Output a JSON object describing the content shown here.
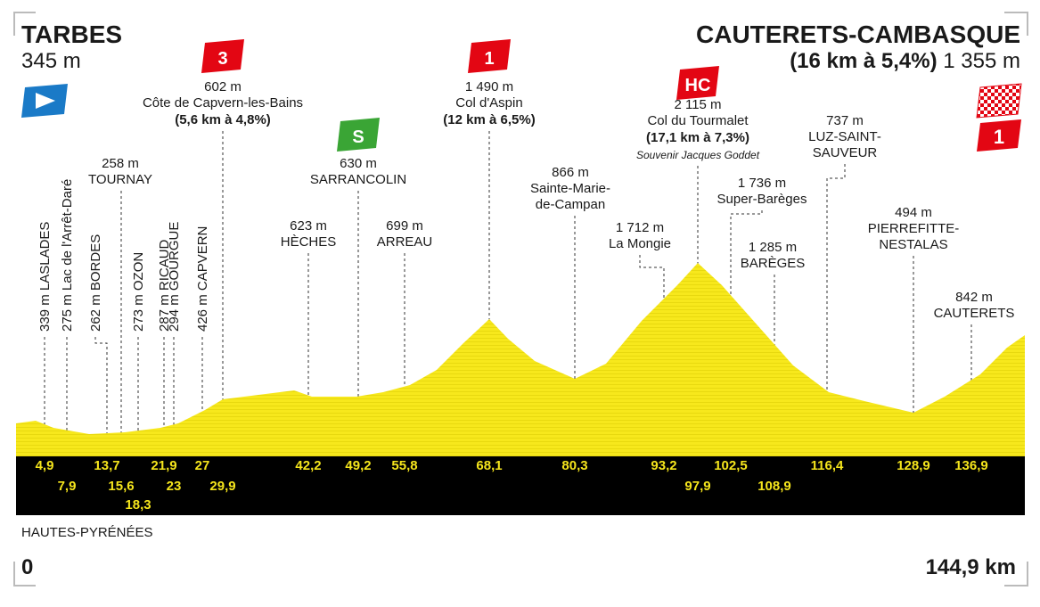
{
  "start": {
    "name": "TARBES",
    "altitude": "345 m"
  },
  "finish": {
    "name": "CAUTERETS-CAMBASQUE",
    "climb": "(16 km à 5,4%)",
    "altitude": "1 355 m",
    "category": "1"
  },
  "region": "HAUTES-PYRÉNÉES",
  "distance_start": "0",
  "distance_end": "144,9 km",
  "waypoints": [
    {
      "km": "4,9",
      "altitude": "339 m",
      "name": "LASLADES"
    },
    {
      "km": "7,9",
      "altitude": "275 m",
      "name": "Lac de l'Arrêt-Daré"
    },
    {
      "km": "13,7",
      "altitude": "262 m",
      "name": "BORDES"
    },
    {
      "km": "15,6",
      "altitude": "258 m",
      "name": "TOURNAY"
    },
    {
      "km": "18,3",
      "altitude": "273 m",
      "name": "OZON"
    },
    {
      "km": "21,9",
      "altitude": "287 m",
      "name": "RICAUD"
    },
    {
      "km": "23",
      "altitude": "294 m",
      "name": "GOURGUE"
    },
    {
      "km": "27",
      "altitude": "426 m",
      "name": "CAPVERN"
    },
    {
      "km": "29,9",
      "altitude": "602 m",
      "name": "Côte de Capvern-les-Bains",
      "detail": "(5,6 km à 4,8%)",
      "category": "3"
    },
    {
      "km": "42,2",
      "altitude": "623 m",
      "name": "HÈCHES"
    },
    {
      "km": "49,2",
      "altitude": "630 m",
      "name": "SARRANCOLIN",
      "category": "S"
    },
    {
      "km": "55,8",
      "altitude": "699 m",
      "name": "ARREAU"
    },
    {
      "km": "68,1",
      "altitude": "1 490 m",
      "name": "Col d'Aspin",
      "detail": "(12 km à 6,5%)",
      "category": "1"
    },
    {
      "km": "80,3",
      "altitude": "866 m",
      "name": [
        "Sainte-Marie-",
        "de-Campan"
      ]
    },
    {
      "km": "93,2",
      "altitude": "1 712 m",
      "name": "La Mongie"
    },
    {
      "km": "97,9",
      "altitude": "2 115 m",
      "name": "Col du Tourmalet",
      "detail": "(17,1 km à 7,3%)",
      "note": "Souvenir Jacques Goddet",
      "category": "HC"
    },
    {
      "km": "102,5",
      "altitude": "1 736 m",
      "name": "Super-Barèges"
    },
    {
      "km": "108,9",
      "altitude": "1 285 m",
      "name": "BARÈGES"
    },
    {
      "km": "116,4",
      "altitude": "737 m",
      "name": [
        "LUZ-SAINT-",
        "SAUVEUR"
      ]
    },
    {
      "km": "128,9",
      "altitude": "494 m",
      "name": [
        "PIERREFITTE-",
        "NESTALAS"
      ]
    },
    {
      "km": "136,9",
      "altitude": "842 m",
      "name": "CAUTERETS"
    }
  ]
}
